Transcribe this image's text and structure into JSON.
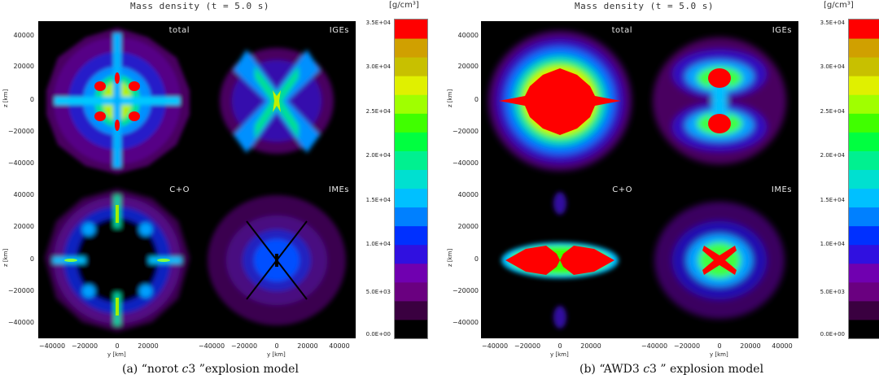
{
  "figures": [
    {
      "title": "Mass density (t = 5.0 s)",
      "unit": "[g/cm³]",
      "panels": [
        {
          "label": "total"
        },
        {
          "label": "IGEs"
        },
        {
          "label": "C+O"
        },
        {
          "label": "IMEs"
        }
      ],
      "caption_prefix": "(a) “norot ",
      "caption_italic": "c",
      "caption_rest": "3 ”explosion model"
    },
    {
      "title": "Mass density (t = 5.0 s)",
      "unit": "[g/cm³]",
      "panels": [
        {
          "label": "total"
        },
        {
          "label": "IGEs"
        },
        {
          "label": "C+O"
        },
        {
          "label": "IMEs"
        }
      ],
      "caption_prefix": "(b) “AWD3 ",
      "caption_italic": "c",
      "caption_rest": "3 ” explosion model"
    }
  ],
  "axes": {
    "ylabel": "z [km]",
    "xlabel": "y [km]",
    "yticks": [
      "40000",
      "20000",
      "0",
      "−20000",
      "−40000"
    ],
    "xticks": [
      "−40000",
      "−20000",
      "0",
      "20000",
      "40000"
    ]
  },
  "colorbar": {
    "ticks": [
      "3.5E+04",
      "3.0E+04",
      "2.5E+04",
      "2.0E+04",
      "1.5E+04",
      "1.0E+04",
      "5.0E+03",
      "0.0E+00"
    ],
    "colors": [
      "#000000",
      "#3a0040",
      "#6a0080",
      "#7000b0",
      "#3010e0",
      "#0030ff",
      "#0080ff",
      "#00c0ff",
      "#00e0d0",
      "#00f090",
      "#00ff40",
      "#40ff00",
      "#a0ff00",
      "#e0f000",
      "#c8c000",
      "#d0a000",
      "#ff0000"
    ]
  }
}
